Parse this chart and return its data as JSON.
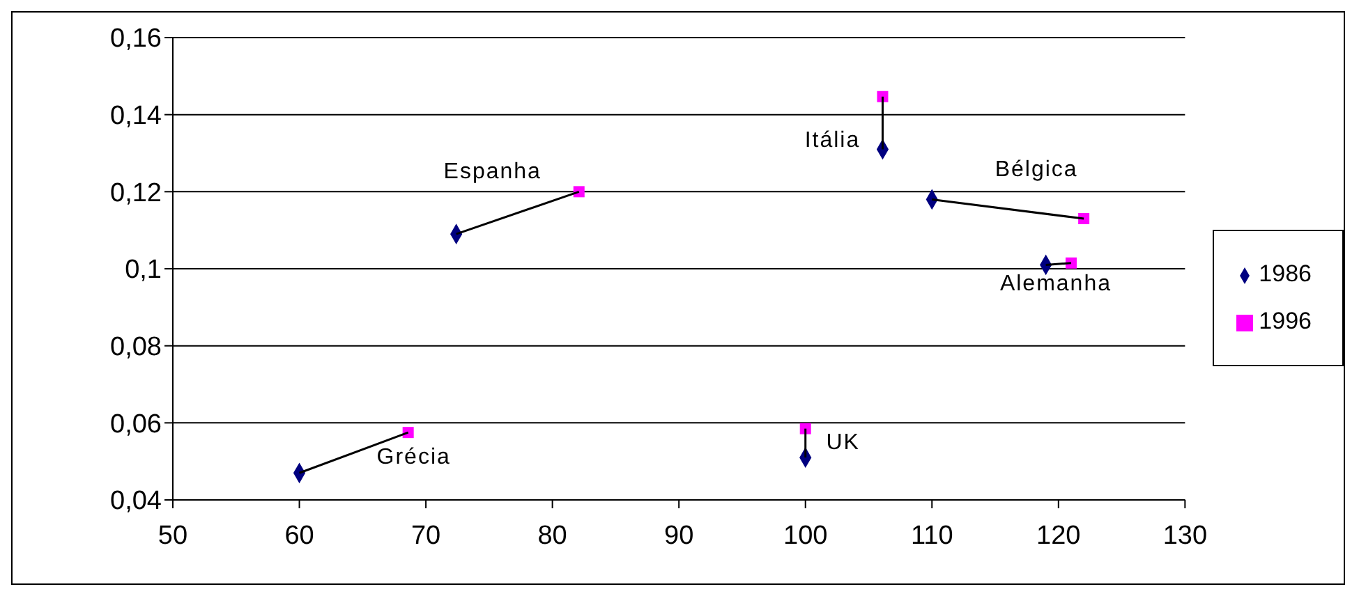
{
  "chart_data": {
    "type": "scatter",
    "series": [
      {
        "name": "1986",
        "color": "#000080",
        "marker": "diamond",
        "x": [
          60,
          72.4,
          106.1,
          110,
          119,
          100
        ],
        "values": [
          0.047,
          0.109,
          0.131,
          0.118,
          0.101,
          0.051
        ]
      },
      {
        "name": "1996",
        "color": "#ff00ff",
        "marker": "square",
        "x": [
          68.6,
          82.1,
          106.1,
          122,
          121,
          100
        ],
        "values": [
          0.0575,
          0.12,
          0.1447,
          0.113,
          0.1015,
          0.0585
        ]
      },
      {
        "type": "line",
        "color": "#000000",
        "marker": "none",
        "x": [
          60,
          68.6
        ],
        "values": [
          0.047,
          0.0575
        ]
      },
      {
        "type": "line",
        "color": "#000000",
        "marker": "none",
        "x": [
          72.4,
          82.1
        ],
        "values": [
          0.109,
          0.12
        ]
      },
      {
        "type": "line",
        "color": "#000000",
        "marker": "none",
        "x": [
          106.1,
          106.1
        ],
        "values": [
          0.131,
          0.1447
        ]
      },
      {
        "type": "line",
        "color": "#000000",
        "marker": "none",
        "x": [
          110,
          122
        ],
        "values": [
          0.118,
          0.113
        ]
      },
      {
        "type": "line",
        "color": "#000000",
        "marker": "none",
        "x": [
          119,
          121
        ],
        "values": [
          0.101,
          0.1015
        ]
      },
      {
        "type": "line",
        "color": "#000000",
        "marker": "none",
        "x": [
          100,
          100
        ],
        "values": [
          0.051,
          0.0585
        ]
      }
    ],
    "annotations": [
      {
        "text": "Grécia",
        "x": 68.6,
        "y": 0.0575
      },
      {
        "text": "Espanha",
        "x": 82.1,
        "y": 0.12
      },
      {
        "text": "Itália",
        "x": 106.1,
        "y": 0.131
      },
      {
        "text": "Bélgica",
        "x": 122,
        "y": 0.113
      },
      {
        "text": "Alemanha",
        "x": 121,
        "y": 0.1015
      },
      {
        "text": "UK",
        "x": 100,
        "y": 0.0585
      }
    ],
    "xlim": [
      50,
      130
    ],
    "xticks": [
      50,
      60,
      70,
      80,
      90,
      100,
      110,
      120,
      130
    ],
    "ylim": [
      0.04,
      0.16
    ],
    "yticks": [
      {
        "value": 0.04,
        "label": "0,04"
      },
      {
        "value": 0.06,
        "label": "0,06"
      },
      {
        "value": 0.08,
        "label": "0,08"
      },
      {
        "value": 0.1,
        "label": "0,1"
      },
      {
        "value": 0.12,
        "label": "0,12"
      },
      {
        "value": 0.14,
        "label": "0,14"
      },
      {
        "value": 0.16,
        "label": "0,16"
      }
    ],
    "grid": "y",
    "legend": "right"
  }
}
